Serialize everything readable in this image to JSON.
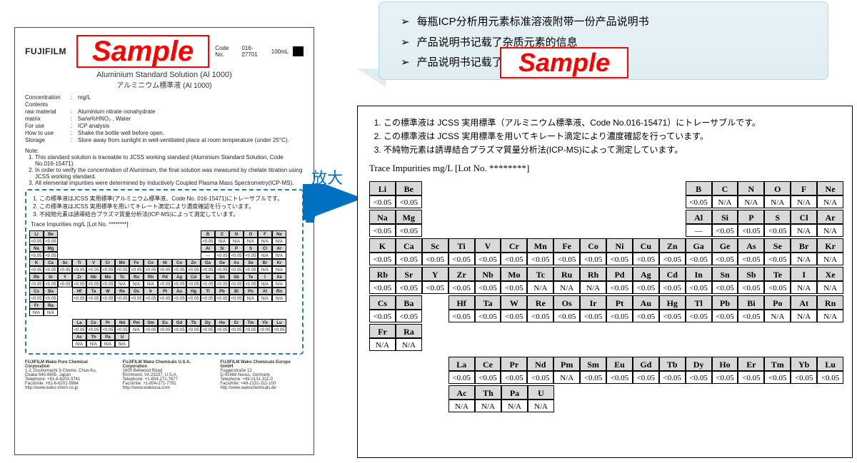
{
  "callout": {
    "lines": [
      "每瓶ICP分析用元素标准溶液附带一份产品说明书",
      "产品说明书记载了杂质元素的信息",
      "产品说明书记载了溯源信息、浓度测定方法"
    ]
  },
  "zoom_label": "放大",
  "doc": {
    "brand": "FUJIFILM",
    "sample": "Sample",
    "code_label": "Code No.",
    "code_value": "016-27701",
    "volume": "100mL",
    "title_en": "Aluminium Standard Solution (Al 1000)",
    "title_jp": "アルミニウム標準液  (Al 1000)",
    "spec": {
      "concentration_k": "Concentration",
      "concentration_v": "mg/L",
      "contents_k": "Contents",
      "raw_k": "raw material",
      "raw_v": "Aluminium nitrate nonahydrate",
      "matrix_k": "matrix",
      "matrix_v": "5w/w%HNO₃ , Water",
      "for_k": "For use",
      "for_v": "ICP analysis",
      "how_k": "How to use",
      "how_v": "Shake the bottle well before open.",
      "storage_k": "Storage",
      "storage_v": "Store away from sunlight in well-ventilated place at room temperature (under 25°C)."
    },
    "note_head": "Note:",
    "notes_en": [
      "This standard solution is traceable to JCSS working standard (Aluminium Standard Solution, Code No.016-15471).",
      "In order to verify the concentration of Aluminium, the final solution was measured by chelate titration using JCSS working standard.",
      "All elemental impurities were determined by Inductively Coupled Plasma Mass Spectrometry(ICP-MS)."
    ],
    "notes_jp": [
      "この標準液はJCSS 実用標準(アルミニウム標準液、Code No. 016-15471)にトレーサブルです。",
      "この標準液はJCSS 実用標準を用いてキレート滴定により濃度確認を行っています。",
      "不純物元素は誘導結合プラズマ質量分析法(ICP-MS)によって測定しています。"
    ],
    "trace_head": "Trace Impurities mg/L [Lot No. ********]",
    "footer": [
      {
        "name": "FUJIFILM Wako Pure Chemical Corporation",
        "l1": "1-2, Doshomachi 3-Chome, Chuo-Ku, Osaka 540-8605, Japan",
        "l2": "Telephone: +81-6-6203-3741",
        "l3": "Facsimile: +81-6-6201-5964",
        "l4": "http://www.wako-chem.co.jp"
      },
      {
        "name": "FUJIFILM Wako Chemicals U.S.A. Corporation",
        "l1": "1600 Bellwood Road",
        "l2": "Richmond, VA 23237, U.S.A.",
        "l3": "Telephone: +1-804-271-7677",
        "l4": "Facsimile: +1-804-271-7791",
        "l5": "http://www.wakousa.com"
      },
      {
        "name": "FUJIFILM Wako Chemicals Europe GmbH",
        "l1": "Fuggerstraße 12",
        "l2": "D-41468 Neuss, Germany",
        "l3": "Telephone: +49-2131-311-0",
        "l4": "Facsimile: +49-2131-311-100",
        "l5": "http://www.wakochemicals.de"
      }
    ]
  },
  "detail": {
    "notes": [
      "この標準液は JCSS 実用標準（アルミニウム標準液、Code No.016-15471）にトレーサブルです。",
      "この標準液は JCSS 実用標準を用いてキレート滴定により濃度確認を行っています。",
      "不純物元素は誘導結合プラズマ質量分析法(ICP-MS)によって測定しています。"
    ],
    "trace_head": "Trace Impurities mg/L [Lot No. ********]",
    "sample": "Sample",
    "colors": {
      "header_bg": "#d9d9d9",
      "border": "#000000",
      "sample_red": "#ff0000",
      "callout_bg": "#e4eff4",
      "zoom_blue": "#0070c0"
    },
    "rows": [
      {
        "left": [
          [
            "Li",
            "<0.05"
          ],
          [
            "Be",
            "<0.05"
          ]
        ],
        "right": [
          [
            "B",
            "<0.05"
          ],
          [
            "C",
            "N/A"
          ],
          [
            "N",
            "N/A"
          ],
          [
            "O",
            "N/A"
          ],
          [
            "F",
            "N/A"
          ],
          [
            "Ne",
            "N/A"
          ]
        ]
      },
      {
        "left": [
          [
            "Na",
            "<0.05"
          ],
          [
            "Mg",
            "<0.05"
          ]
        ],
        "right": [
          [
            "Al",
            "—"
          ],
          [
            "Si",
            "<0.05"
          ],
          [
            "P",
            "<0.05"
          ],
          [
            "S",
            "<0.05"
          ],
          [
            "Cl",
            "N/A"
          ],
          [
            "Ar",
            "N/A"
          ]
        ]
      },
      {
        "full": [
          [
            "K",
            "<0.05"
          ],
          [
            "Ca",
            "<0.05"
          ],
          [
            "Sc",
            "<0.05"
          ],
          [
            "Ti",
            "<0.05"
          ],
          [
            "V",
            "<0.05"
          ],
          [
            "Cr",
            "<0.05"
          ],
          [
            "Mn",
            "<0.05"
          ],
          [
            "Fe",
            "<0.05"
          ],
          [
            "Co",
            "<0.05"
          ],
          [
            "Ni",
            "<0.05"
          ],
          [
            "Cu",
            "<0.05"
          ],
          [
            "Zn",
            "<0.05"
          ],
          [
            "Ga",
            "<0.05"
          ],
          [
            "Ge",
            "<0.05"
          ],
          [
            "As",
            "<0.05"
          ],
          [
            "Se",
            "<0.05"
          ],
          [
            "Br",
            "N/A"
          ],
          [
            "Kr",
            "N/A"
          ]
        ]
      },
      {
        "full": [
          [
            "Rb",
            "<0.05"
          ],
          [
            "Sr",
            "<0.05"
          ],
          [
            "Y",
            "<0.05"
          ],
          [
            "Zr",
            "<0.05"
          ],
          [
            "Nb",
            "<0.05"
          ],
          [
            "Mo",
            "<0.05"
          ],
          [
            "Tc",
            "N/A"
          ],
          [
            "Ru",
            "N/A"
          ],
          [
            "Rh",
            "N/A"
          ],
          [
            "Pd",
            "<0.05"
          ],
          [
            "Ag",
            "<0.05"
          ],
          [
            "Cd",
            "<0.05"
          ],
          [
            "In",
            "<0.05"
          ],
          [
            "Sn",
            "<0.05"
          ],
          [
            "Sb",
            "<0.05"
          ],
          [
            "Te",
            "<0.05"
          ],
          [
            "I",
            "N/A"
          ],
          [
            "Xe",
            "N/A"
          ]
        ]
      },
      {
        "left2": [
          [
            "Cs",
            "<0.05"
          ],
          [
            "Ba",
            "<0.05"
          ]
        ],
        "skip": 1,
        "rest": [
          [
            "Hf",
            "<0.05"
          ],
          [
            "Ta",
            "<0.05"
          ],
          [
            "W",
            "<0.05"
          ],
          [
            "Re",
            "<0.05"
          ],
          [
            "Os",
            "<0.05"
          ],
          [
            "Ir",
            "<0.05"
          ],
          [
            "Pt",
            "<0.05"
          ],
          [
            "Au",
            "<0.05"
          ],
          [
            "Hg",
            "<0.05"
          ],
          [
            "Tl",
            "<0.05"
          ],
          [
            "Pb",
            "<0.05"
          ],
          [
            "Bi",
            "<0.05"
          ],
          [
            "Po",
            "N/A"
          ],
          [
            "At",
            "N/A"
          ],
          [
            "Rn",
            "N/A"
          ]
        ]
      },
      {
        "left": [
          [
            "Fr",
            "N/A"
          ],
          [
            "Ra",
            "N/A"
          ]
        ]
      },
      {
        "lan": [
          [
            "La",
            "<0.05"
          ],
          [
            "Ce",
            "<0.05"
          ],
          [
            "Pr",
            "<0.05"
          ],
          [
            "Nd",
            "<0.05"
          ],
          [
            "Pm",
            "N/A"
          ],
          [
            "Sm",
            "<0.05"
          ],
          [
            "Eu",
            "<0.05"
          ],
          [
            "Gd",
            "<0.05"
          ],
          [
            "Tb",
            "<0.05"
          ],
          [
            "Dy",
            "<0.05"
          ],
          [
            "Ho",
            "<0.05"
          ],
          [
            "Er",
            "<0.05"
          ],
          [
            "Tm",
            "<0.05"
          ],
          [
            "Yb",
            "<0.05"
          ],
          [
            "Lu",
            "<0.05"
          ]
        ]
      },
      {
        "act": [
          [
            "Ac",
            "N/A"
          ],
          [
            "Th",
            "N/A"
          ],
          [
            "Pa",
            "N/A"
          ],
          [
            "U",
            "N/A"
          ]
        ]
      }
    ]
  }
}
